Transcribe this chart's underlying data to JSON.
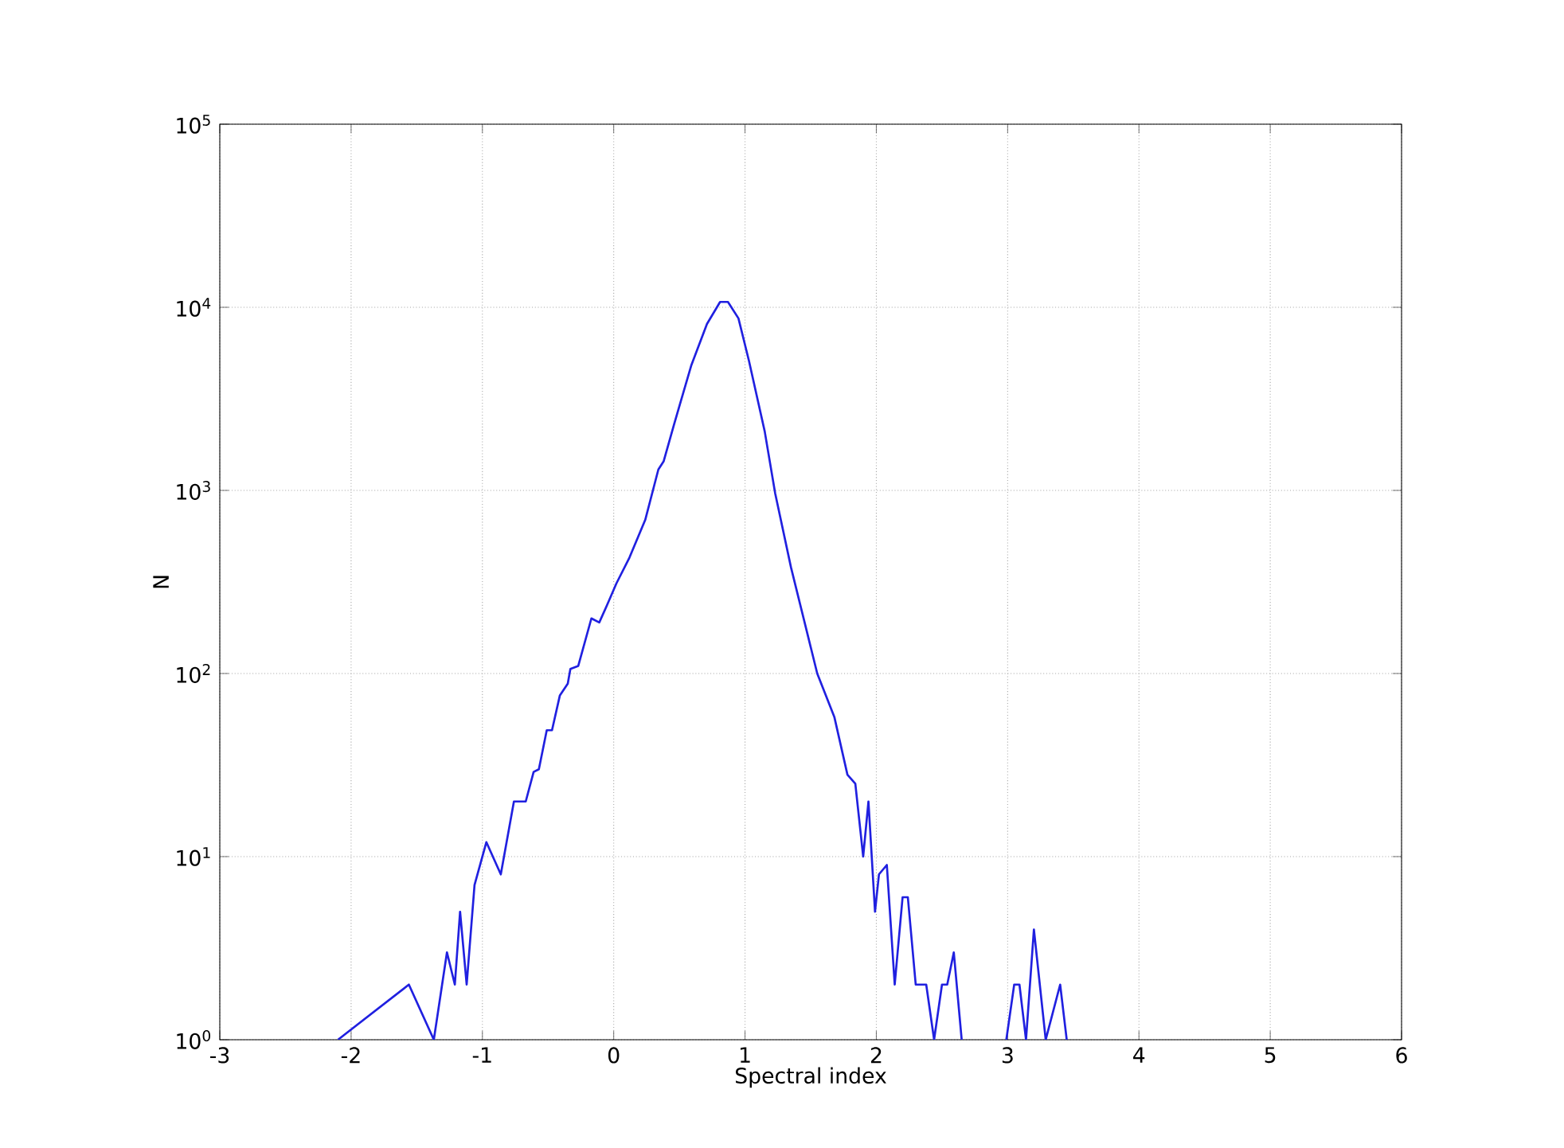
{
  "chart_data": {
    "type": "line",
    "xlabel": "Spectral index",
    "ylabel": "N",
    "log": "y",
    "grid": true,
    "line_style": "solid",
    "marker": "none",
    "xlim": [
      -3,
      6
    ],
    "xticks": [
      -3,
      -2,
      -1,
      0,
      1,
      2,
      3,
      4,
      5,
      6
    ],
    "ylim": [
      1,
      100000
    ],
    "yticks": [
      {
        "value": 1,
        "label": "10$^{0}$"
      },
      {
        "value": 10,
        "label": "10$^{1}$"
      },
      {
        "value": 100,
        "label": "10$^{2}$"
      },
      {
        "value": 1000,
        "label": "10$^{3}$"
      },
      {
        "value": 10000,
        "label": "10$^{4}$"
      },
      {
        "value": 100000,
        "label": "10$^{5}$"
      }
    ],
    "series": [
      {
        "color": "#2020e0",
        "x": [
          -2.1,
          -1.56,
          -1.37,
          -1.27,
          -1.21,
          -1.17,
          -1.12,
          -1.06,
          -0.97,
          -0.86,
          -0.76,
          -0.67,
          -0.61,
          -0.57,
          -0.51,
          -0.47,
          -0.41,
          -0.35,
          -0.33,
          -0.27,
          -0.17,
          -0.11,
          -0.05,
          0.02,
          0.12,
          0.24,
          0.34,
          0.38,
          0.46,
          0.59,
          0.71,
          0.81,
          0.87,
          0.95,
          1.03,
          1.15,
          1.23,
          1.35,
          1.55,
          1.68,
          1.78,
          1.84,
          1.9,
          1.94,
          1.99,
          2.02,
          2.08,
          2.14,
          2.2,
          2.24,
          2.3,
          2.38,
          2.44,
          2.5,
          2.54,
          2.59,
          2.65,
          2.8,
          2.99,
          3.05,
          3.09,
          3.14,
          3.2,
          3.29,
          3.4,
          3.45
        ],
        "values": [
          1,
          2,
          1,
          3,
          2,
          5,
          2,
          7,
          12,
          8,
          20,
          20,
          29,
          30,
          49,
          49,
          76,
          88,
          106,
          110,
          200,
          190,
          237,
          310,
          430,
          690,
          1300,
          1440,
          2300,
          4800,
          8100,
          10700,
          10700,
          8700,
          5100,
          2100,
          960,
          380,
          100,
          58,
          28,
          25,
          10,
          20,
          5,
          8,
          9,
          2,
          6,
          6,
          2,
          2,
          1,
          2,
          2,
          3,
          1,
          null,
          1,
          2,
          2,
          1,
          4,
          1,
          2,
          1
        ]
      }
    ]
  }
}
